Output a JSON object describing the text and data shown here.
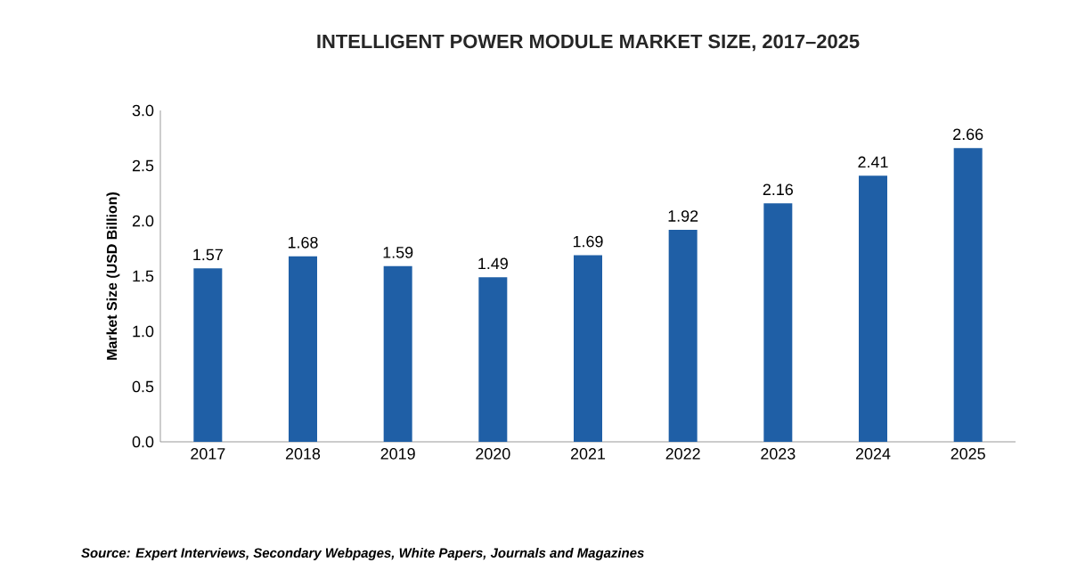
{
  "chart_data": {
    "type": "bar",
    "title": "INTELLIGENT POWER MODULE MARKET SIZE, 2017–2025",
    "ylabel": "Market Size (USD Billion)",
    "categories": [
      "2017",
      "2018",
      "2019",
      "2020",
      "2021",
      "2022",
      "2023",
      "2024",
      "2025"
    ],
    "values": [
      1.57,
      1.68,
      1.59,
      1.49,
      1.69,
      1.92,
      2.16,
      2.41,
      2.66
    ],
    "color": "#1f5fa6",
    "ylim": [
      0,
      3
    ],
    "yticks": [
      {
        "value": 0,
        "label": "0.0"
      },
      {
        "value": 0.5,
        "label": "0.5"
      },
      {
        "value": 1,
        "label": "1.0"
      },
      {
        "value": 1.5,
        "label": "1.5"
      },
      {
        "value": 2,
        "label": "2.0"
      },
      {
        "value": 2.5,
        "label": "2.5"
      },
      {
        "value": 3,
        "label": "3.0"
      }
    ],
    "data_labels": true,
    "annotations": [
      "Source: Expert Interviews, Secondary Webpages, White Papers, Journals and Magazines"
    ]
  }
}
